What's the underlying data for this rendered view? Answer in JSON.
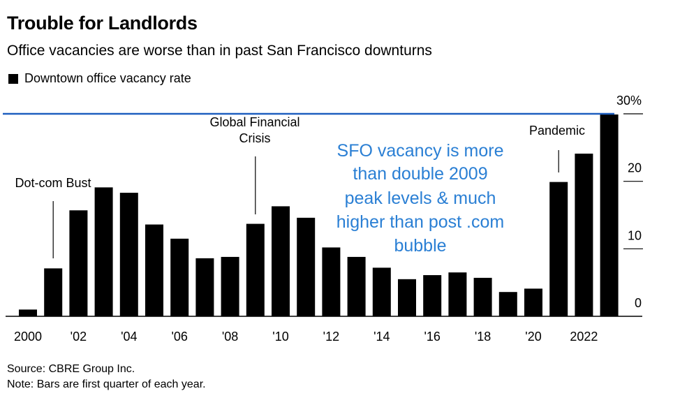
{
  "header": {
    "title": "Trouble for Landlords",
    "subtitle": "Office vacancies are worse than in past San Francisco downturns"
  },
  "legend": {
    "label": "Downtown office vacancy rate"
  },
  "footer": {
    "source": "Source: CBRE Group Inc.",
    "note": "Note: Bars are first quarter of each year."
  },
  "colors": {
    "bars": "#000000",
    "reference_line": "#1f5fbf",
    "callout_text": "#2a7fd4"
  },
  "chart_data": {
    "type": "bar",
    "x": [
      2000,
      2001,
      2002,
      2003,
      2004,
      2005,
      2006,
      2007,
      2008,
      2009,
      2010,
      2011,
      2012,
      2013,
      2014,
      2015,
      2016,
      2017,
      2018,
      2019,
      2020,
      2021,
      2022,
      2023
    ],
    "values": [
      1.0,
      7.1,
      15.7,
      19.1,
      18.3,
      13.6,
      11.5,
      8.6,
      8.8,
      13.7,
      16.3,
      14.6,
      10.2,
      8.8,
      7.2,
      5.5,
      6.1,
      6.5,
      5.7,
      3.6,
      4.1,
      19.9,
      24.1,
      29.9
    ],
    "x_tick_labels": [
      {
        "year": 2000,
        "label": "2000"
      },
      {
        "year": 2002,
        "label": "'02"
      },
      {
        "year": 2004,
        "label": "'04"
      },
      {
        "year": 2006,
        "label": "'06"
      },
      {
        "year": 2008,
        "label": "'08"
      },
      {
        "year": 2010,
        "label": "'10"
      },
      {
        "year": 2012,
        "label": "'12"
      },
      {
        "year": 2014,
        "label": "'14"
      },
      {
        "year": 2016,
        "label": "'16"
      },
      {
        "year": 2018,
        "label": "'18"
      },
      {
        "year": 2020,
        "label": "'20"
      },
      {
        "year": 2022,
        "label": "2022"
      }
    ],
    "y_ticks": [
      {
        "value": 0,
        "label": "0"
      },
      {
        "value": 10,
        "label": "10"
      },
      {
        "value": 20,
        "label": "20"
      },
      {
        "value": 30,
        "label": "30%"
      }
    ],
    "ylim": [
      0,
      30
    ],
    "y_axis_side": "right",
    "grid": false,
    "reference_line": {
      "value": 30
    },
    "annotations": [
      {
        "year": 2001,
        "lines": [
          "Dot-com Bust"
        ]
      },
      {
        "year": 2009,
        "lines": [
          "Global Financial",
          "Crisis"
        ]
      },
      {
        "year": 2021,
        "lines": [
          "Pandemic"
        ]
      }
    ],
    "callout": {
      "lines": [
        "SFO vacancy is more",
        "than double 2009",
        "peak levels  & much",
        "higher than post .com",
        "bubble"
      ]
    }
  }
}
